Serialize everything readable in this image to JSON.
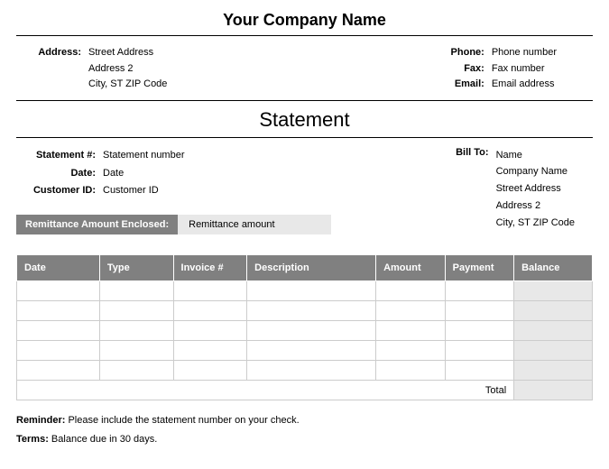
{
  "company": {
    "name": "Your Company Name",
    "address_label": "Address:",
    "address_line1": "Street Address",
    "address_line2": "Address 2",
    "address_line3": "City, ST  ZIP Code",
    "phone_label": "Phone:",
    "phone": "Phone number",
    "fax_label": "Fax:",
    "fax": "Fax number",
    "email_label": "Email:",
    "email": "Email address"
  },
  "document_title": "Statement",
  "meta": {
    "statement_no_label": "Statement #:",
    "statement_no": "Statement number",
    "date_label": "Date:",
    "date": "Date",
    "customer_id_label": "Customer ID:",
    "customer_id": "Customer ID"
  },
  "billto": {
    "label": "Bill To:",
    "name": "Name",
    "company": "Company Name",
    "address1": "Street Address",
    "address2": "Address 2",
    "city": "City, ST  ZIP Code"
  },
  "remittance": {
    "label": "Remittance Amount Enclosed:",
    "value": "Remittance amount"
  },
  "table": {
    "columns": [
      "Date",
      "Type",
      "Invoice #",
      "Description",
      "Amount",
      "Payment",
      "Balance"
    ],
    "col_widths": [
      "90px",
      "80px",
      "80px",
      "140px",
      "75px",
      "75px",
      "85px"
    ],
    "row_count": 5,
    "total_label": "Total",
    "header_bg": "#808080",
    "header_fg": "#ffffff",
    "balance_bg": "#e8e8e8",
    "border_color": "#cccccc"
  },
  "footer": {
    "reminder_label": "Reminder:",
    "reminder_text": " Please include the statement number on your check.",
    "terms_label": "Terms:",
    "terms_text": " Balance due in 30 days."
  },
  "colors": {
    "text": "#000000",
    "bg": "#ffffff",
    "grey_dark": "#808080",
    "grey_light": "#e8e8e8"
  }
}
